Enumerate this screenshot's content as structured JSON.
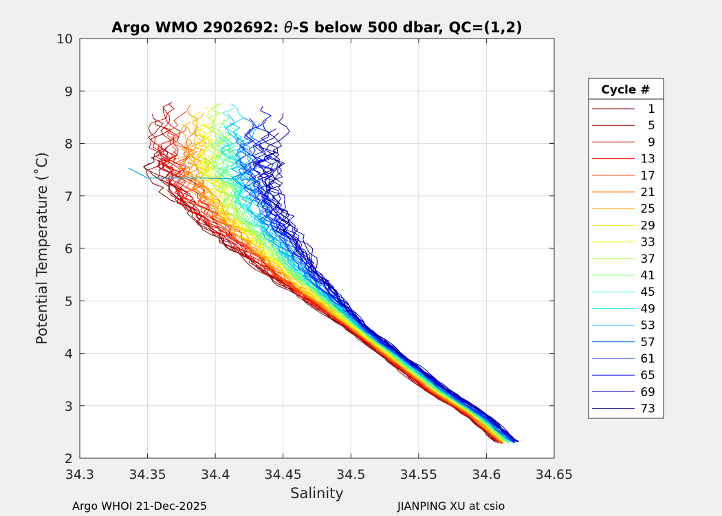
{
  "chart_data": {
    "type": "line",
    "title_prefix": "Argo WMO 2902692: ",
    "title_theta": "θ",
    "title_suffix": "-S below 500 dbar,  QC=(1,2)",
    "xlabel": "Salinity",
    "ylabel": "Potential Temperature (˚C)",
    "xlim": [
      34.3,
      34.65
    ],
    "ylim": [
      2,
      10
    ],
    "xticks": [
      "34.3",
      "34.35",
      "34.4",
      "34.45",
      "34.5",
      "34.55",
      "34.6",
      "34.65"
    ],
    "yticks": [
      "2",
      "3",
      "4",
      "5",
      "6",
      "7",
      "8",
      "9",
      "10"
    ],
    "grid": true,
    "legend_title": "Cycle #",
    "legend_placement": "outside-right",
    "legend_entries": [
      "1",
      "5",
      "9",
      "13",
      "17",
      "21",
      "25",
      "29",
      "33",
      "37",
      "41",
      "45",
      "49",
      "53",
      "57",
      "61",
      "65",
      "69",
      "73"
    ],
    "legend_colors": [
      "#7f0000",
      "#a50000",
      "#cc0000",
      "#f00000",
      "#ff3a00",
      "#ff7000",
      "#ffa600",
      "#ffda00",
      "#e8ff10",
      "#b0ff48",
      "#7cff7c",
      "#48ffb0",
      "#10e8ff",
      "#00b0ff",
      "#0070ff",
      "#0038ff",
      "#0000f4",
      "#0000c2",
      "#00008f"
    ],
    "series_shared": {
      "deep_path": [
        [
          34.622,
          2.3
        ],
        [
          34.6,
          2.8
        ],
        [
          34.57,
          3.3
        ],
        [
          34.54,
          3.9
        ],
        [
          34.51,
          4.5
        ],
        [
          34.49,
          5.0
        ],
        [
          34.47,
          5.5
        ],
        [
          34.455,
          6.0
        ],
        [
          34.44,
          6.5
        ],
        [
          34.43,
          7.0
        ],
        [
          34.425,
          7.5
        ]
      ],
      "shallow_spread_salinity_offset_min": -0.07,
      "shallow_spread_salinity_offset_max": 0.02
    },
    "outlier_trace": {
      "name": "cycle ~53",
      "points": [
        [
          34.336,
          7.53
        ],
        [
          34.342,
          7.45
        ],
        [
          34.35,
          7.34
        ],
        [
          34.39,
          7.34
        ],
        [
          34.42,
          7.32
        ],
        [
          34.433,
          7.28
        ]
      ]
    }
  },
  "footer": {
    "left": "Argo WHOI 21-Dec-2025",
    "right": "JIANPING XU at csio"
  }
}
